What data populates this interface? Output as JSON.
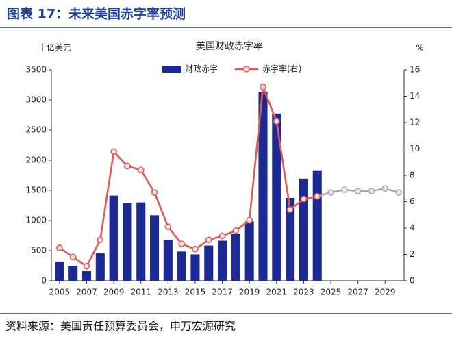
{
  "header": {
    "title": "图表 17：未来美国赤字率预测"
  },
  "chart_data": {
    "type": "bar",
    "title": "美国财政赤字率",
    "y_label": "十亿美元",
    "y2_label": "%",
    "x": [
      2005,
      2006,
      2007,
      2008,
      2009,
      2010,
      2011,
      2012,
      2013,
      2014,
      2015,
      2016,
      2017,
      2018,
      2019,
      2020,
      2021,
      2022,
      2023,
      2024,
      2025,
      2026,
      2027,
      2028,
      2029,
      2030
    ],
    "xlim": [
      2004.4,
      2030.4
    ],
    "xticks": [
      2005,
      2007,
      2009,
      2011,
      2013,
      2015,
      2017,
      2019,
      2021,
      2023,
      2025,
      2027,
      2029
    ],
    "ylim": [
      0,
      3500
    ],
    "yticks": [
      0,
      500,
      1000,
      1500,
      2000,
      2500,
      3000,
      3500
    ],
    "y2lim": [
      0,
      16
    ],
    "y2ticks": [
      0,
      2,
      4,
      6,
      8,
      10,
      12,
      14,
      16
    ],
    "series": [
      {
        "name": "财政赤字",
        "type": "bar",
        "color": "#1c2a94",
        "values": [
          318,
          248,
          161,
          459,
          1413,
          1294,
          1300,
          1087,
          680,
          485,
          438,
          585,
          665,
          779,
          984,
          3132,
          2775,
          1375,
          1695,
          1833,
          null,
          null,
          null,
          null,
          null,
          null
        ]
      },
      {
        "name": "赤字率(右)",
        "type": "line",
        "axis": "y2",
        "color": "#e05a5a",
        "values": [
          2.5,
          1.8,
          1.1,
          3.1,
          9.8,
          8.7,
          8.4,
          6.7,
          4.1,
          2.8,
          2.4,
          3.1,
          3.4,
          3.8,
          4.6,
          14.7,
          12.1,
          5.4,
          6.2,
          6.4,
          null,
          null,
          null,
          null,
          null,
          null
        ]
      },
      {
        "type": "line",
        "axis": "y2",
        "color": "#a6a6a6",
        "values": [
          null,
          null,
          null,
          null,
          null,
          null,
          null,
          null,
          null,
          null,
          null,
          null,
          null,
          null,
          null,
          null,
          null,
          null,
          null,
          6.4,
          6.7,
          6.9,
          6.8,
          6.8,
          7.0,
          6.7
        ]
      }
    ]
  },
  "footer": {
    "source": "资料来源：美国责任预算委员会，申万宏源研究"
  }
}
